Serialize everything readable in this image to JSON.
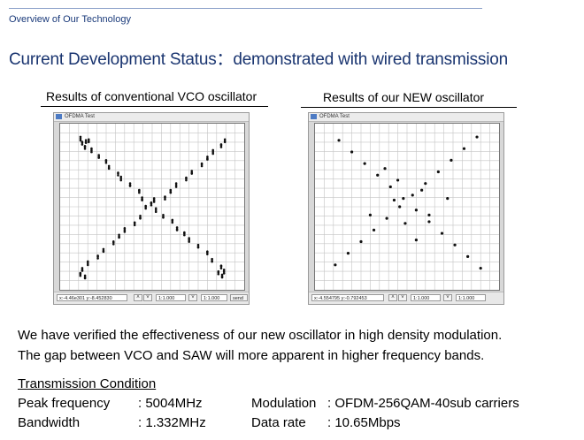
{
  "header": {
    "breadcrumb": "Overview of Our Technology",
    "title": "Current Development Status：demonstrated with wired transmission"
  },
  "panels": [
    {
      "caption": "Results of conventional VCO oscillator",
      "window_title": "OFDMA Test",
      "coords": "x:-4.46e301  y:-8.452830",
      "zoom1": "1:1.000",
      "zoom2": "1:1.000",
      "send_label": "send",
      "points": [
        {
          "x": 0.12,
          "y": 0.09
        },
        {
          "x": 0.14,
          "y": 0.11
        },
        {
          "x": 0.11,
          "y": 0.12
        },
        {
          "x": 0.16,
          "y": 0.1
        },
        {
          "x": 0.13,
          "y": 0.14
        },
        {
          "x": 0.18,
          "y": 0.16
        },
        {
          "x": 0.21,
          "y": 0.2
        },
        {
          "x": 0.24,
          "y": 0.23
        },
        {
          "x": 0.27,
          "y": 0.26
        },
        {
          "x": 0.31,
          "y": 0.3
        },
        {
          "x": 0.34,
          "y": 0.33
        },
        {
          "x": 0.38,
          "y": 0.37
        },
        {
          "x": 0.42,
          "y": 0.41
        },
        {
          "x": 0.45,
          "y": 0.45
        },
        {
          "x": 0.49,
          "y": 0.48
        },
        {
          "x": 0.53,
          "y": 0.52
        },
        {
          "x": 0.56,
          "y": 0.56
        },
        {
          "x": 0.6,
          "y": 0.59
        },
        {
          "x": 0.64,
          "y": 0.63
        },
        {
          "x": 0.67,
          "y": 0.66
        },
        {
          "x": 0.71,
          "y": 0.7
        },
        {
          "x": 0.75,
          "y": 0.74
        },
        {
          "x": 0.79,
          "y": 0.78
        },
        {
          "x": 0.83,
          "y": 0.82
        },
        {
          "x": 0.87,
          "y": 0.86
        },
        {
          "x": 0.9,
          "y": 0.89
        },
        {
          "x": 0.88,
          "y": 0.92
        },
        {
          "x": 0.85,
          "y": 0.9
        },
        {
          "x": 0.9,
          "y": 0.1
        },
        {
          "x": 0.87,
          "y": 0.13
        },
        {
          "x": 0.84,
          "y": 0.17
        },
        {
          "x": 0.8,
          "y": 0.21
        },
        {
          "x": 0.76,
          "y": 0.25
        },
        {
          "x": 0.72,
          "y": 0.29
        },
        {
          "x": 0.68,
          "y": 0.33
        },
        {
          "x": 0.64,
          "y": 0.37
        },
        {
          "x": 0.6,
          "y": 0.41
        },
        {
          "x": 0.56,
          "y": 0.45
        },
        {
          "x": 0.44,
          "y": 0.56
        },
        {
          "x": 0.4,
          "y": 0.6
        },
        {
          "x": 0.36,
          "y": 0.64
        },
        {
          "x": 0.32,
          "y": 0.68
        },
        {
          "x": 0.28,
          "y": 0.72
        },
        {
          "x": 0.24,
          "y": 0.76
        },
        {
          "x": 0.2,
          "y": 0.8
        },
        {
          "x": 0.16,
          "y": 0.84
        },
        {
          "x": 0.12,
          "y": 0.88
        },
        {
          "x": 0.1,
          "y": 0.91
        },
        {
          "x": 0.14,
          "y": 0.92
        },
        {
          "x": 0.46,
          "y": 0.5
        },
        {
          "x": 0.52,
          "y": 0.46
        }
      ]
    },
    {
      "caption": "Results of our NEW oscillator",
      "window_title": "OFDMA Test",
      "coords": "x:-4.554795  y:-0.792453",
      "zoom1": "1:1.000",
      "zoom2": "1:1.000",
      "send_label": "",
      "points": [
        {
          "x": 0.13,
          "y": 0.1
        },
        {
          "x": 0.2,
          "y": 0.17
        },
        {
          "x": 0.27,
          "y": 0.24
        },
        {
          "x": 0.34,
          "y": 0.31
        },
        {
          "x": 0.41,
          "y": 0.38
        },
        {
          "x": 0.48,
          "y": 0.45
        },
        {
          "x": 0.55,
          "y": 0.52
        },
        {
          "x": 0.62,
          "y": 0.59
        },
        {
          "x": 0.69,
          "y": 0.66
        },
        {
          "x": 0.76,
          "y": 0.73
        },
        {
          "x": 0.83,
          "y": 0.8
        },
        {
          "x": 0.9,
          "y": 0.87
        },
        {
          "x": 0.88,
          "y": 0.08
        },
        {
          "x": 0.81,
          "y": 0.15
        },
        {
          "x": 0.74,
          "y": 0.22
        },
        {
          "x": 0.67,
          "y": 0.29
        },
        {
          "x": 0.6,
          "y": 0.36
        },
        {
          "x": 0.53,
          "y": 0.43
        },
        {
          "x": 0.46,
          "y": 0.5
        },
        {
          "x": 0.39,
          "y": 0.57
        },
        {
          "x": 0.32,
          "y": 0.64
        },
        {
          "x": 0.25,
          "y": 0.71
        },
        {
          "x": 0.18,
          "y": 0.78
        },
        {
          "x": 0.11,
          "y": 0.85
        },
        {
          "x": 0.38,
          "y": 0.27
        },
        {
          "x": 0.45,
          "y": 0.34
        },
        {
          "x": 0.58,
          "y": 0.4
        },
        {
          "x": 0.62,
          "y": 0.55
        },
        {
          "x": 0.49,
          "y": 0.6
        },
        {
          "x": 0.3,
          "y": 0.55
        },
        {
          "x": 0.72,
          "y": 0.45
        },
        {
          "x": 0.55,
          "y": 0.7
        },
        {
          "x": 0.43,
          "y": 0.46
        }
      ]
    }
  ],
  "body": {
    "line1": "We have verified the effectiveness of our new oscillator in high density modulation.",
    "line2": "The gap between VCO and SAW will more  apparent in higher frequency bands."
  },
  "conditions": {
    "heading": "Transmission Condition",
    "rows": [
      {
        "label": "Peak frequency",
        "value": ": 5004MHz",
        "label2": "Modulation",
        "value2": ": OFDM-256QAM-40sub carriers"
      },
      {
        "label": "Bandwidth",
        "value": ": 1.332MHz",
        "label2": "Data rate",
        "value2": ": 10.65Mbps"
      }
    ]
  }
}
